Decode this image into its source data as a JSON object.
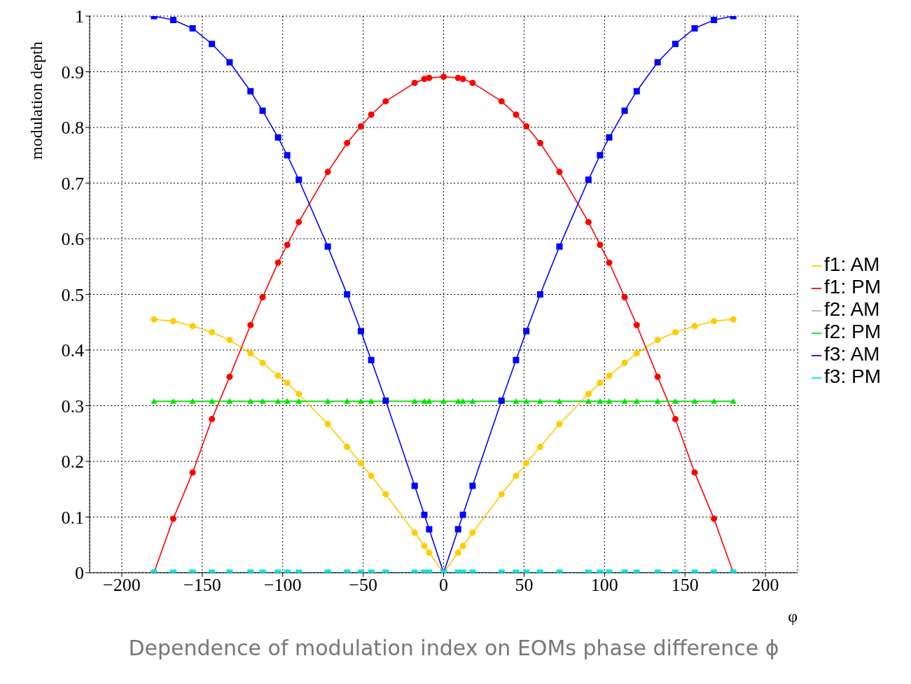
{
  "chart_data": {
    "type": "line",
    "ylabel": "modulation depth",
    "xlabel": "φ",
    "x": [
      -180,
      -168,
      -156,
      -144,
      -133,
      -120,
      -112.5,
      -102.9,
      -97.2,
      -90,
      -72,
      -60,
      -51.4,
      -45,
      -36,
      -18,
      -12,
      -9,
      0,
      9,
      12,
      18,
      36,
      45,
      51.4,
      60,
      72,
      90,
      97.2,
      102.9,
      112.5,
      120,
      133,
      144,
      156,
      168,
      180
    ],
    "series": [
      {
        "name": "f1: AM",
        "color": "#ffcc00",
        "marker": "circle",
        "values": [
          0.455,
          0.452,
          0.443,
          0.432,
          0.418,
          0.394,
          0.377,
          0.354,
          0.341,
          0.321,
          0.267,
          0.226,
          0.197,
          0.174,
          0.141,
          0.072,
          0.048,
          0.036,
          0,
          0.036,
          0.048,
          0.072,
          0.141,
          0.174,
          0.197,
          0.226,
          0.267,
          0.321,
          0.341,
          0.354,
          0.377,
          0.394,
          0.418,
          0.432,
          0.443,
          0.452,
          0.455
        ]
      },
      {
        "name": "f1: PM",
        "color": "#ff0000",
        "marker": "circle",
        "values": [
          0,
          0.097,
          0.18,
          0.276,
          0.352,
          0.445,
          0.495,
          0.557,
          0.589,
          0.63,
          0.72,
          0.772,
          0.802,
          0.823,
          0.847,
          0.88,
          0.887,
          0.889,
          0.891,
          0.889,
          0.887,
          0.88,
          0.847,
          0.823,
          0.802,
          0.772,
          0.72,
          0.63,
          0.589,
          0.557,
          0.495,
          0.445,
          0.352,
          0.276,
          0.18,
          0.097,
          0
        ]
      },
      {
        "name": "f2: AM",
        "color": "#b3b3b3",
        "marker": "triangle",
        "values": [
          null,
          null,
          null,
          null,
          null,
          null,
          null,
          null,
          null,
          null,
          null,
          null,
          null,
          null,
          null,
          null,
          null,
          null,
          null,
          null,
          null,
          null,
          null,
          null,
          null,
          null,
          null,
          null,
          null,
          null,
          null,
          null,
          null,
          null,
          null,
          null,
          null
        ]
      },
      {
        "name": "f2: PM",
        "color": "#00e600",
        "marker": "triangle",
        "values": [
          0.308,
          0.308,
          0.308,
          0.308,
          0.308,
          0.308,
          0.308,
          0.308,
          0.308,
          0.308,
          0.308,
          0.308,
          0.308,
          0.308,
          null,
          0.308,
          0.308,
          0.308,
          0.308,
          0.308,
          0.308,
          0.308,
          null,
          0.308,
          0.308,
          0.308,
          0.308,
          0.308,
          0.308,
          0.308,
          0.308,
          0.308,
          0.308,
          0.308,
          0.308,
          0.308,
          0.308
        ]
      },
      {
        "name": "f3: AM",
        "color": "#0000ff",
        "marker": "square",
        "values": [
          1,
          0.993,
          0.978,
          0.95,
          0.917,
          0.865,
          0.83,
          0.782,
          0.75,
          0.706,
          0.586,
          0.5,
          0.434,
          0.382,
          0.309,
          0.156,
          0.104,
          0.078,
          0,
          0.078,
          0.104,
          0.156,
          0.309,
          0.382,
          0.434,
          0.5,
          0.586,
          0.706,
          0.75,
          0.782,
          0.83,
          0.865,
          0.917,
          0.95,
          0.978,
          0.993,
          1
        ]
      },
      {
        "name": "f3: PM",
        "color": "#00e5e5",
        "marker": "square",
        "values": [
          0,
          0,
          0,
          0,
          0,
          0,
          0,
          0,
          0,
          0,
          0,
          0,
          0,
          0,
          0,
          0,
          0,
          0,
          0,
          0,
          0,
          0,
          0,
          0,
          0,
          0,
          0,
          0,
          0,
          0,
          0,
          0,
          0,
          0,
          0,
          0,
          0
        ]
      }
    ],
    "xlim": [
      -220,
      220
    ],
    "xticks": [
      -200,
      -150,
      -100,
      -50,
      0,
      50,
      100,
      150,
      200
    ],
    "ylim": [
      0,
      1
    ],
    "yticks": [
      0,
      0.1,
      0.2,
      0.3,
      0.4,
      0.5,
      0.6,
      0.7,
      0.8,
      0.9,
      1
    ],
    "grid": true,
    "legend": "right",
    "line_style": "solid",
    "annotations": [
      "Dependence of modulation index on EOMs phase difference ϕ"
    ]
  }
}
